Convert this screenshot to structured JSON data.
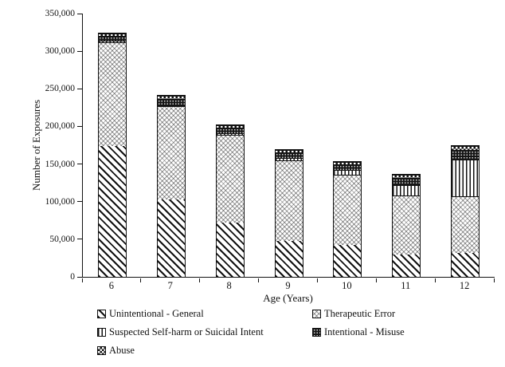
{
  "chart_data": {
    "type": "bar",
    "stacked": true,
    "title": "",
    "xlabel": "Age (Years)",
    "ylabel": "Number of Exposures",
    "ylim": [
      0,
      350000
    ],
    "ytick_step": 50000,
    "ytick_labels": [
      "0",
      "50,000",
      "100,000",
      "150,000",
      "200,000",
      "250,000",
      "300,000",
      "350,000"
    ],
    "categories": [
      "6",
      "7",
      "8",
      "9",
      "10",
      "11",
      "12"
    ],
    "series": [
      {
        "name": "Unintentional - General",
        "pattern": "diagonal-stripes",
        "values": [
          174000,
          103000,
          72000,
          48000,
          42000,
          29500,
          32000
        ]
      },
      {
        "name": "Therapeutic Error",
        "pattern": "light-wave-hatch",
        "values": [
          138000,
          123500,
          116500,
          107000,
          93500,
          78500,
          75000
        ]
      },
      {
        "name": "Suspected Self-harm or Suicidal Intent",
        "pattern": "vertical-stripes",
        "values": [
          1500,
          1500,
          2000,
          3000,
          6500,
          14000,
          49000
        ]
      },
      {
        "name": "Intentional - Misuse",
        "pattern": "solid-dark-dotted",
        "values": [
          6500,
          8500,
          8000,
          7500,
          8000,
          10000,
          12500
        ]
      },
      {
        "name": "Abuse",
        "pattern": "checkerboard",
        "values": [
          3500,
          4000,
          3500,
          3000,
          3000,
          3500,
          6000
        ]
      }
    ],
    "legend_position": "bottom",
    "grid": false
  },
  "colors": {
    "background": "#ffffff",
    "axis": "#111111",
    "bar_border": "#111111",
    "pattern_dark": "#161616",
    "pattern_light": "#bbbbbb"
  }
}
